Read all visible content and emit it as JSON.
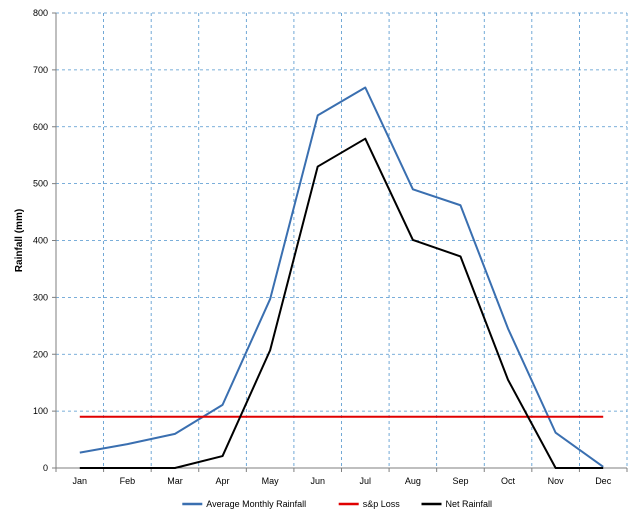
{
  "chart_data": {
    "type": "line",
    "title": "",
    "xlabel": "",
    "ylabel": "Rainfall (mm)",
    "categories": [
      "Jan",
      "Feb",
      "Mar",
      "Apr",
      "May",
      "Jun",
      "Jul",
      "Aug",
      "Sep",
      "Oct",
      "Nov",
      "Dec"
    ],
    "ylim": [
      0,
      800
    ],
    "yticks": [
      0,
      100,
      200,
      300,
      400,
      500,
      600,
      700,
      800
    ],
    "grid": true,
    "legend_position": "bottom",
    "series": [
      {
        "name": "Average Monthly Rainfall",
        "color": "#3a6fb0",
        "values": [
          27,
          42,
          60,
          111,
          297,
          620,
          669,
          490,
          462,
          245,
          62,
          2
        ]
      },
      {
        "name": "s&p Loss",
        "color": "#e00000",
        "values": [
          90,
          90,
          90,
          90,
          90,
          90,
          90,
          90,
          90,
          90,
          90,
          90
        ]
      },
      {
        "name": "Net Rainfall",
        "color": "#000000",
        "values": [
          0,
          0,
          0,
          21,
          207,
          530,
          579,
          401,
          372,
          155,
          0,
          0
        ]
      }
    ]
  }
}
